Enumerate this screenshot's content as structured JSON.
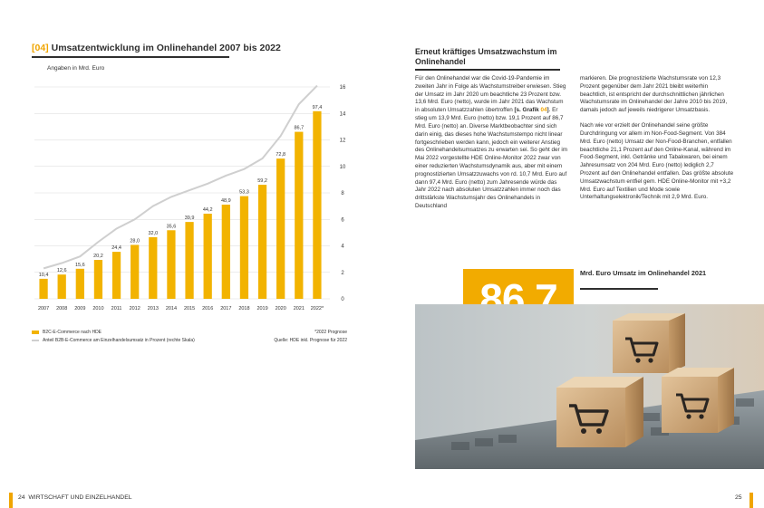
{
  "left_page": {
    "chart_title_number": "[04]",
    "chart_title_text": "Umsatzentwicklung im Onlinehandel 2007 bis 2022",
    "chart_subtitle": "Angaben in Mrd. Euro",
    "legend_b2c": "B2C-E-Commerce nach HDE",
    "legend_share": "Anteil B2B-E-Commerce am Einzelhandelsumsatz in Prozent (rechte Skala)",
    "note_forecast": "*2022 Prognose",
    "note_source": "Quelle: HDE inkl. Prognose für 2022"
  },
  "chart_data": {
    "type": "bar",
    "categories": [
      "2007",
      "2008",
      "2009",
      "2010",
      "2011",
      "2012",
      "2013",
      "2014",
      "2015",
      "2016",
      "2017",
      "2018",
      "2019",
      "2020",
      "2021",
      "2022*"
    ],
    "series": [
      {
        "name": "B2C-E-Commerce nach HDE",
        "type": "bar",
        "color": "#f2b300",
        "axis": "left",
        "values": [
          10.4,
          12.6,
          15.6,
          20.2,
          24.4,
          28.0,
          32.0,
          35.6,
          39.9,
          44.2,
          48.9,
          53.3,
          59.2,
          72.8,
          86.7,
          97.4
        ],
        "labels": [
          "10,4",
          "12,6",
          "15,6",
          "20,2",
          "24,4",
          "28,0",
          "32,0",
          "35,6",
          "39,9",
          "44,2",
          "48,9",
          "53,3",
          "59,2",
          "72,8",
          "86,7",
          "97,4"
        ]
      },
      {
        "name": "Anteil B2B-E-Commerce am Einzelhandelsumsatz in Prozent (rechte Skala)",
        "type": "line",
        "color": "#cfcfcf",
        "axis": "right",
        "values": [
          2.3,
          2.7,
          3.2,
          4.3,
          5.3,
          6.0,
          7.0,
          7.7,
          8.2,
          8.7,
          9.3,
          9.8,
          10.6,
          12.3,
          14.7,
          16.1
        ]
      }
    ],
    "y_left_range": [
      0,
      110
    ],
    "y_right_ticks": [
      0,
      2,
      4,
      6,
      8,
      10,
      12,
      14,
      16
    ],
    "y_right_range": [
      0,
      16
    ],
    "grid": true,
    "legend_position": "bottom-left"
  },
  "right_page": {
    "article_title": "Erneut kräftiges Umsatzwachstum im Onlinehandel",
    "col1_p1a": "Für den Onlinehandel war die Covid-19-Pandemie im zweiten Jahr in Folge als Wachstumstreiber erwiesen. Stieg der Umsatz im Jahr 2020 um beachtliche 23 Prozent bzw. 13,6 Mrd. Euro (netto), wurde im Jahr 2021 das Wachstum in absoluten Umsatzzahlen übertroffen ",
    "col1_ref_a": "[s. Grafik ",
    "col1_ref_num": "04",
    "col1_ref_b": "]",
    "col1_p1b": ". Er stieg um 13,9 Mrd. Euro (netto) bzw. 19,1 Prozent auf 86,7 Mrd. Euro (netto) an. Diverse Marktbeobachter sind sich darin einig, das dieses hohe Wachstumstempo nicht linear fortgeschrieben werden kann, jedoch ein weiterer Anstieg des Onlinehandelsumsatzes zu erwarten sei. So geht der im Mai 2022 vorgestellte HDE Online-Monitor 2022 zwar von einer reduzierten Wachstumsdynamik aus, aber mit einem prognostizierten Umsatzzuwachs von rd. 10,7 Mrd. Euro auf dann 97,4 Mrd. Euro (netto) zum Jahresende würde das Jahr 2022 nach absoluten Umsatzzahlen immer noch das drittstärkste Wachstumsjahr des Onlinehandels in Deutschland",
    "col2_p1": "markieren. Die prognostizierte Wachstumsrate von 12,3 Prozent gegenüber dem Jahr 2021 bleibt weiterhin beachtlich, ist entspricht der durchschnittlichen jährlichen Wachstumsrate im Onlinehandel der Jahre 2010 bis 2019, damals jedoch auf jeweils niedrigerer Umsatzbasis.",
    "col2_p2": "Nach wie vor erzielt der Onlinehandel seine größte Durchdringung vor allem im Non-Food-Segment. Von 384 Mrd. Euro (netto) Umsatz der Non-Food-Branchen, entfallen beachtliche 21,1 Prozent auf den Online-Kanal, während im Food-Segment, inkl. Getränke und Tabakwaren, bei einem Jahresumsatz von 204 Mrd. Euro (netto) lediglich 2,7 Prozent auf den Onlinehandel entfallen. Das größte absolute Umsatzwachstum entfiel gem. HDE Online-Monitor mit +3,2 Mrd. Euro auf Textilien und Mode sowie Unterhaltungselektronik/Technik mit 2,9 Mrd. Euro.",
    "big_number": "86,7",
    "big_caption": "Mrd. Euro Umsatz im Onlinehandel 2021"
  },
  "footer": {
    "left_page_number": "24",
    "left_section": "WIRTSCHAFT UND EINZELHANDEL",
    "right_page_number": "25"
  },
  "colors": {
    "accent": "#f2ab00",
    "rule": "#2f2f2f",
    "line_series": "#cfcfcf"
  }
}
